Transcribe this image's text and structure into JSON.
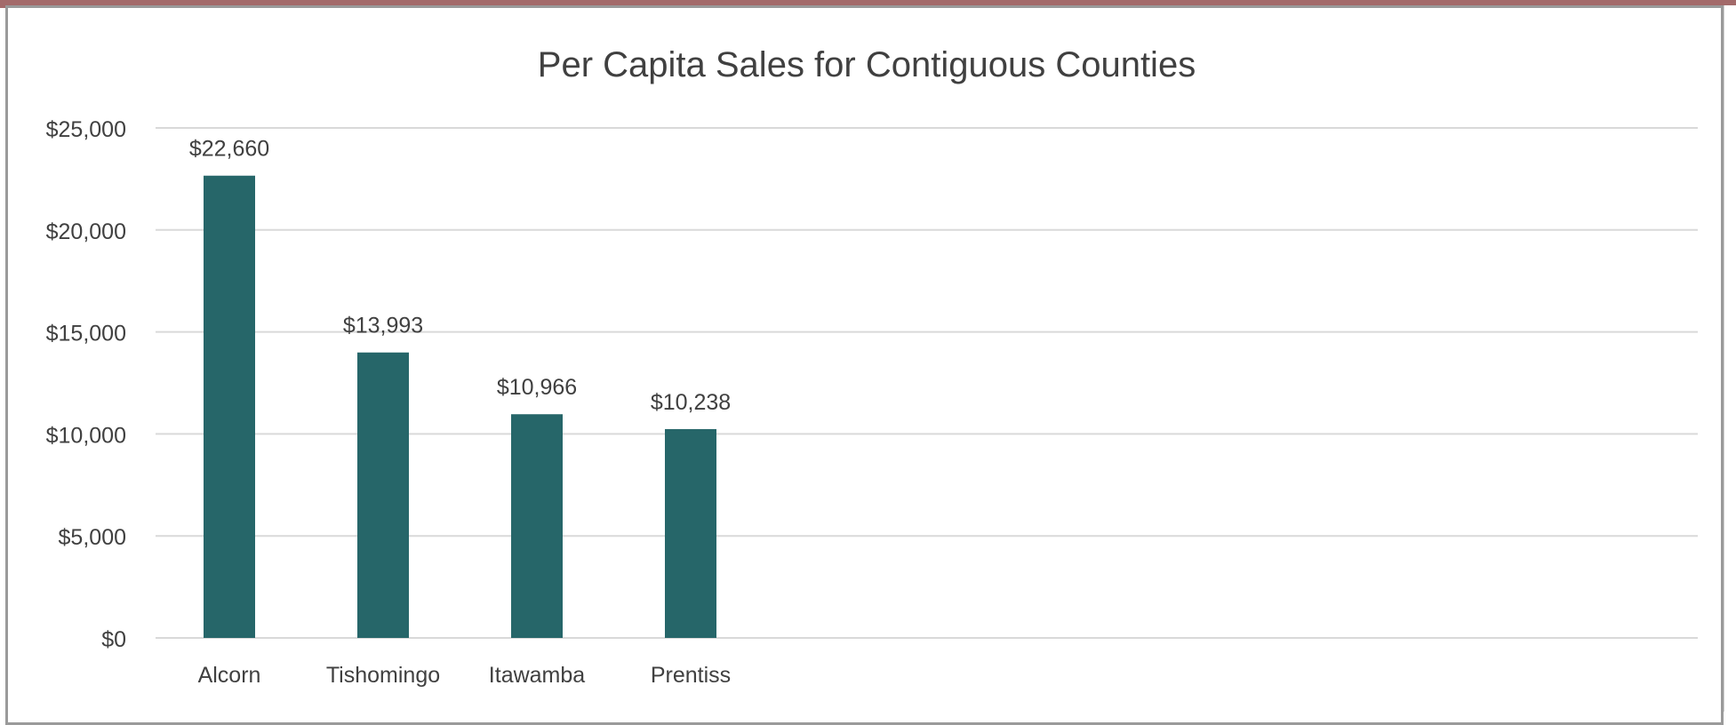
{
  "chart_data": {
    "type": "bar",
    "title": "Per Capita Sales for Contiguous Counties",
    "categories": [
      "Alcorn",
      "Tishomingo",
      "Itawamba",
      "Prentiss"
    ],
    "values": [
      22660,
      13993,
      10966,
      10238
    ],
    "data_labels": [
      "$22,660",
      "$13,993",
      "$10,966",
      "$10,238"
    ],
    "ylim": [
      0,
      25000
    ],
    "yticks": [
      0,
      5000,
      10000,
      15000,
      20000,
      25000
    ],
    "ytick_labels": [
      "$0",
      "$5,000",
      "$10,000",
      "$15,000",
      "$20,000",
      "$25,000"
    ],
    "grid": true,
    "legend": "none",
    "bar_color": "#266669",
    "grid_color": "#d9d9d9"
  }
}
